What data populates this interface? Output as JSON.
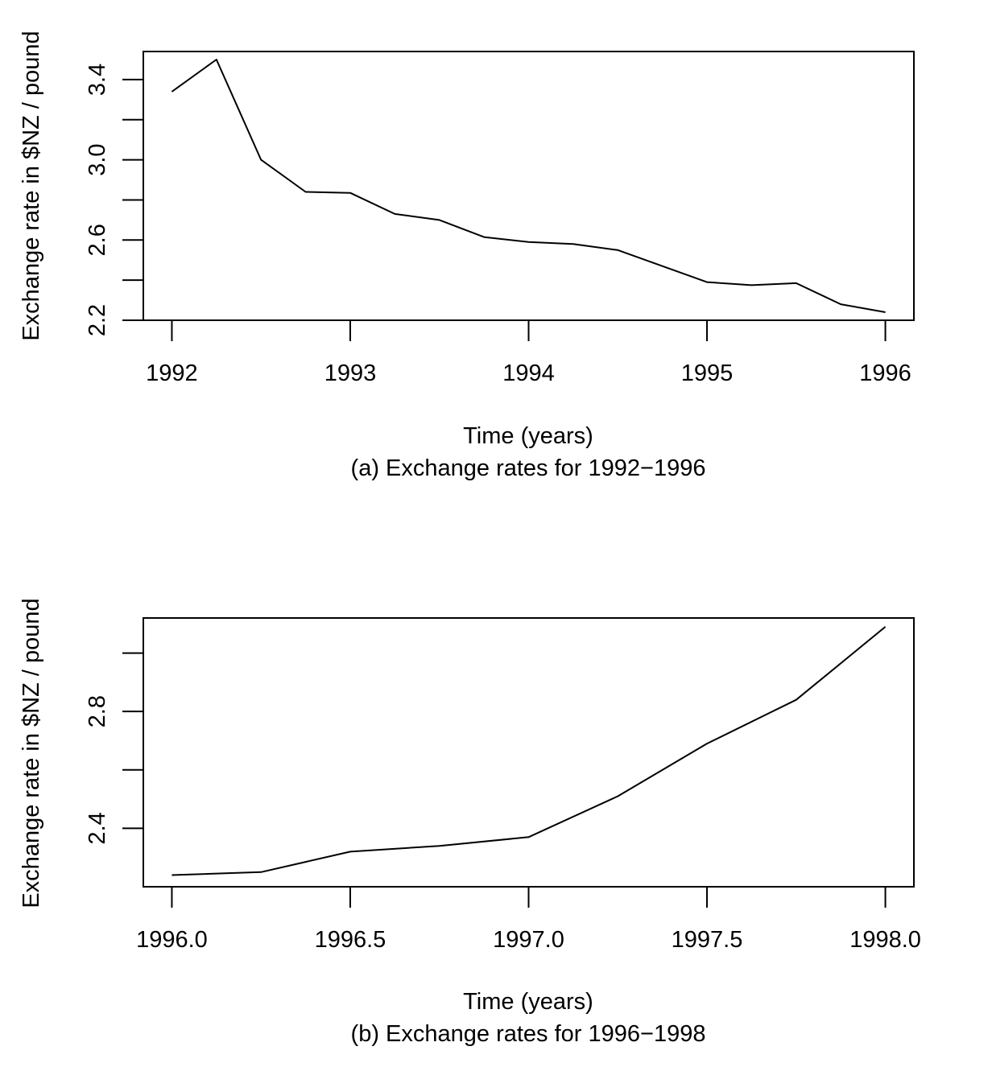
{
  "chart_data": [
    {
      "type": "line",
      "xlabel": "Time (years)",
      "ylabel": "Exchange rate in $NZ / pound",
      "caption": "(a) Exchange rates for 1992−1996",
      "xlim": [
        1991.84,
        1996.16
      ],
      "ylim": [
        2.2,
        3.54
      ],
      "x_ticks": [
        1992,
        1993,
        1994,
        1995,
        1996
      ],
      "x_tick_labels": [
        "1992",
        "1993",
        "1994",
        "1995",
        "1996"
      ],
      "y_ticks": [
        2.2,
        2.4,
        2.6,
        2.8,
        3.0,
        3.2,
        3.4
      ],
      "y_tick_labels": [
        "2.2",
        "",
        "2.6",
        "",
        "3.0",
        "",
        "3.4"
      ],
      "grid": false,
      "series": [
        {
          "x": [
            1992.0,
            1992.25,
            1992.5,
            1992.75,
            1993.0,
            1993.25,
            1993.5,
            1993.75,
            1994.0,
            1994.25,
            1994.5,
            1994.75,
            1995.0,
            1995.25,
            1995.5,
            1995.75,
            1996.0
          ],
          "values": [
            3.34,
            3.5,
            3.0,
            2.84,
            2.835,
            2.73,
            2.7,
            2.615,
            2.59,
            2.58,
            2.55,
            2.47,
            2.39,
            2.375,
            2.385,
            2.28,
            2.24
          ]
        }
      ]
    },
    {
      "type": "line",
      "xlabel": "Time (years)",
      "ylabel": "Exchange rate in $NZ / pound",
      "caption": "(b) Exchange rates for 1996−1998",
      "xlim": [
        1995.92,
        1998.08
      ],
      "ylim": [
        2.2,
        3.12
      ],
      "x_ticks": [
        1996.0,
        1996.5,
        1997.0,
        1997.5,
        1998.0
      ],
      "x_tick_labels": [
        "1996.0",
        "1996.5",
        "1997.0",
        "1997.5",
        "1998.0"
      ],
      "y_ticks": [
        2.4,
        2.6,
        2.8,
        3.0
      ],
      "y_tick_labels": [
        "2.4",
        "",
        "2.8",
        ""
      ],
      "grid": false,
      "series": [
        {
          "x": [
            1996.0,
            1996.25,
            1996.5,
            1996.75,
            1997.0,
            1997.25,
            1997.5,
            1997.75,
            1998.0
          ],
          "values": [
            2.24,
            2.25,
            2.32,
            2.34,
            2.37,
            2.51,
            2.69,
            2.84,
            3.09
          ]
        }
      ]
    }
  ]
}
